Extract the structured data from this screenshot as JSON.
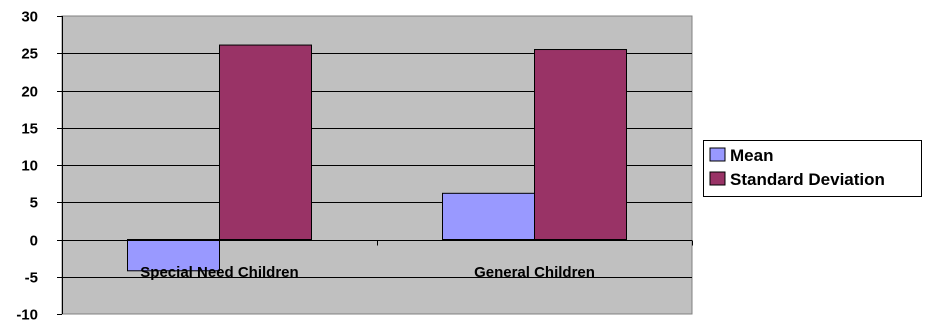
{
  "chart_data": {
    "type": "bar",
    "categories": [
      "Special Need Children",
      "General Children"
    ],
    "series": [
      {
        "name": "Mean",
        "values": [
          -4.2,
          6.2
        ],
        "color": "#9999ff"
      },
      {
        "name": "Standard Deviation",
        "values": [
          26.1,
          25.5
        ],
        "color": "#993366"
      }
    ],
    "ylim": [
      -10,
      30
    ],
    "yticks": [
      30,
      25,
      20,
      15,
      10,
      5,
      0,
      -5,
      -10
    ],
    "plot_background": "#c0c0c0",
    "grid": true,
    "legend_position": "right"
  }
}
